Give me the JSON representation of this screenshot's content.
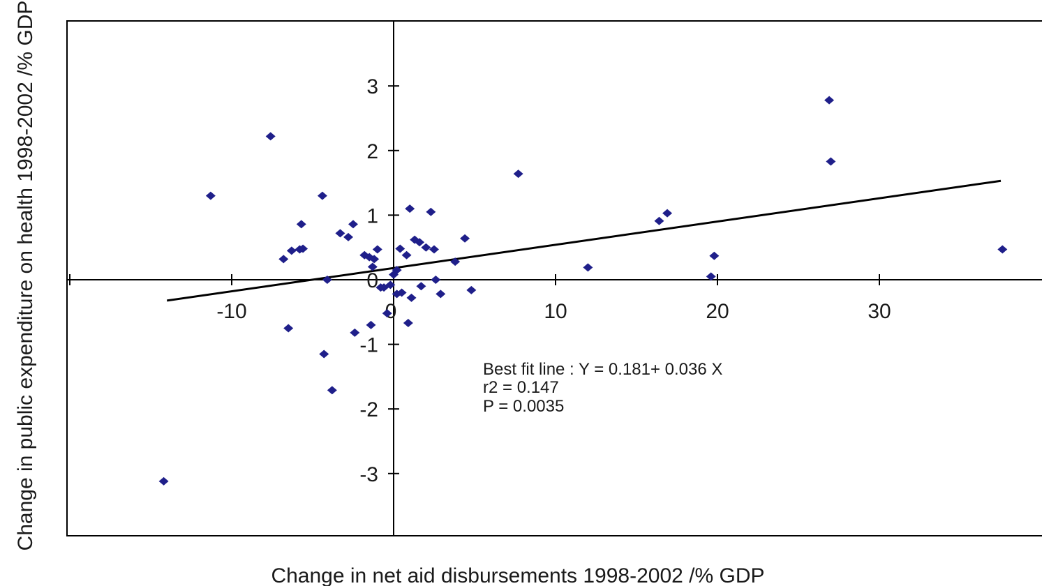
{
  "chart_data": {
    "type": "scatter",
    "xlabel": "Change in net aid disbursements 1998-2002 /% GDP",
    "ylabel": "Change in public expenditure on health 1998-2002 /% GDP",
    "xlim": [
      -20,
      40
    ],
    "ylim": [
      -4,
      4
    ],
    "x_ticks": [
      -10,
      0,
      10,
      20,
      30
    ],
    "y_ticks": [
      -3,
      -2,
      -1,
      0,
      1,
      2,
      3
    ],
    "x_tick_labels": [
      "-10",
      "0",
      "10",
      "20",
      "30"
    ],
    "y_tick_labels": [
      "-3",
      "-2",
      "-1",
      "0",
      "1",
      "2",
      "3"
    ],
    "grid": false,
    "marker_color": "#1f1f8a",
    "fit_line": {
      "intercept": 0.181,
      "slope": 0.036,
      "x_range": [
        -14,
        37.5
      ]
    },
    "annotations": [
      "Best fit line : Y = 0.181+ 0.036 X",
      "r2 = 0.147",
      "P = 0.0035"
    ],
    "points": [
      {
        "x": -14.2,
        "y": -3.12
      },
      {
        "x": -11.3,
        "y": 1.3
      },
      {
        "x": -7.6,
        "y": 2.22
      },
      {
        "x": -6.8,
        "y": 0.32
      },
      {
        "x": -6.5,
        "y": -0.75
      },
      {
        "x": -6.3,
        "y": 0.45
      },
      {
        "x": -5.8,
        "y": 0.47
      },
      {
        "x": -5.6,
        "y": 0.48
      },
      {
        "x": -5.7,
        "y": 0.86
      },
      {
        "x": -4.4,
        "y": 1.3
      },
      {
        "x": -4.3,
        "y": -1.15
      },
      {
        "x": -4.1,
        "y": 0.0
      },
      {
        "x": -3.8,
        "y": -1.71
      },
      {
        "x": -3.3,
        "y": 0.72
      },
      {
        "x": -2.8,
        "y": 0.66
      },
      {
        "x": -2.5,
        "y": 0.86
      },
      {
        "x": -2.4,
        "y": -0.82
      },
      {
        "x": -1.8,
        "y": 0.38
      },
      {
        "x": -1.5,
        "y": 0.35
      },
      {
        "x": -1.4,
        "y": -0.7
      },
      {
        "x": -1.3,
        "y": 0.2
      },
      {
        "x": -1.2,
        "y": 0.32
      },
      {
        "x": -1.0,
        "y": 0.47
      },
      {
        "x": -0.8,
        "y": -0.12
      },
      {
        "x": -0.6,
        "y": -0.12
      },
      {
        "x": -0.4,
        "y": -0.52
      },
      {
        "x": -0.2,
        "y": -0.08
      },
      {
        "x": 0.0,
        "y": 0.08
      },
      {
        "x": 0.2,
        "y": 0.15
      },
      {
        "x": 0.2,
        "y": -0.22
      },
      {
        "x": 0.4,
        "y": 0.48
      },
      {
        "x": 0.5,
        "y": -0.2
      },
      {
        "x": 0.8,
        "y": 0.38
      },
      {
        "x": 0.9,
        "y": -0.67
      },
      {
        "x": 1.0,
        "y": 1.1
      },
      {
        "x": 1.1,
        "y": -0.28
      },
      {
        "x": 1.3,
        "y": 0.62
      },
      {
        "x": 1.6,
        "y": 0.58
      },
      {
        "x": 1.7,
        "y": -0.1
      },
      {
        "x": 2.0,
        "y": 0.5
      },
      {
        "x": 2.3,
        "y": 1.05
      },
      {
        "x": 2.5,
        "y": 0.47
      },
      {
        "x": 2.6,
        "y": 0.0
      },
      {
        "x": 2.9,
        "y": -0.22
      },
      {
        "x": 3.8,
        "y": 0.28
      },
      {
        "x": 4.4,
        "y": 0.64
      },
      {
        "x": 4.8,
        "y": -0.16
      },
      {
        "x": 7.7,
        "y": 1.64
      },
      {
        "x": 12.0,
        "y": 0.19
      },
      {
        "x": 16.4,
        "y": 0.91
      },
      {
        "x": 16.9,
        "y": 1.03
      },
      {
        "x": 19.6,
        "y": 0.05
      },
      {
        "x": 19.8,
        "y": 0.37
      },
      {
        "x": 26.9,
        "y": 2.78
      },
      {
        "x": 27.0,
        "y": 1.83
      },
      {
        "x": 37.6,
        "y": 0.47
      }
    ]
  }
}
